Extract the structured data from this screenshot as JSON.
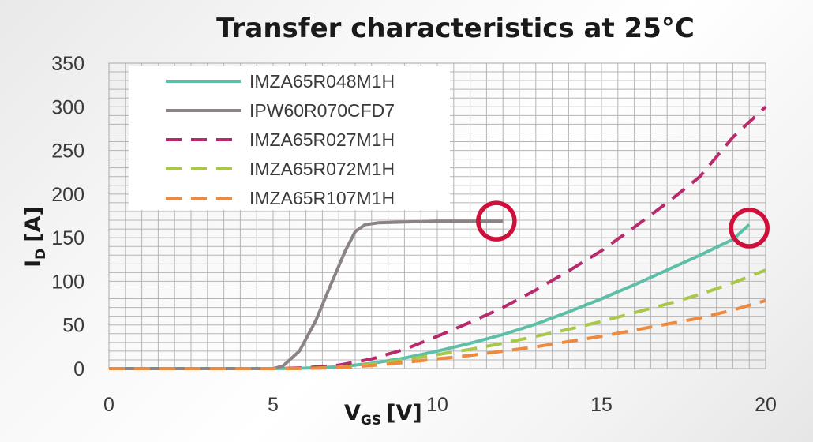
{
  "colors": {
    "grid": "#b5b5b5",
    "annotation": "#d0103a"
  },
  "chart_data": {
    "type": "line",
    "title": "Transfer characteristics at 25°C",
    "xlabel": {
      "main": "V",
      "sub": "GS",
      "unit": "[V]"
    },
    "ylabel": {
      "main": "I",
      "sub": "D",
      "unit": "[A]"
    },
    "xlim": [
      0,
      20
    ],
    "ylim": [
      0,
      350
    ],
    "xticks": [
      0,
      5,
      10,
      15,
      20
    ],
    "yticks": [
      0,
      50,
      100,
      150,
      200,
      250,
      300,
      350
    ],
    "grid": true,
    "legend_position": "top-left",
    "series": [
      {
        "name": "IMZA65R048M1H",
        "color": "#5dbfa8",
        "dash": "solid",
        "x": [
          0,
          5,
          6,
          7,
          8,
          9,
          10,
          11,
          12,
          13,
          14,
          15,
          16,
          17,
          18,
          19,
          19.5
        ],
        "y": [
          0,
          0,
          0.5,
          2,
          6,
          12,
          20,
          29,
          39,
          51,
          65,
          80,
          96,
          113,
          130,
          148,
          165
        ]
      },
      {
        "name": "IPW60R070CFD7",
        "color": "#8c8384",
        "dash": "solid",
        "x": [
          0,
          5,
          5.3,
          5.8,
          6.3,
          6.8,
          7.2,
          7.5,
          7.8,
          8.2,
          9,
          10,
          11,
          12
        ],
        "y": [
          0,
          0,
          3,
          20,
          55,
          100,
          135,
          157,
          165,
          167,
          168,
          169,
          169,
          169
        ]
      },
      {
        "name": "IMZA65R027M1H",
        "color": "#b82a6b",
        "dash": "dashed",
        "x": [
          0,
          5,
          6,
          7,
          8,
          9,
          10,
          11,
          12,
          13,
          14,
          15,
          16,
          17,
          18,
          19,
          20
        ],
        "y": [
          0,
          0,
          1,
          4,
          11,
          22,
          37,
          53,
          70,
          90,
          112,
          135,
          162,
          190,
          220,
          265,
          300
        ]
      },
      {
        "name": "IMZA65R072M1H",
        "color": "#a9c748",
        "dash": "dashed",
        "x": [
          0,
          5,
          6,
          7,
          8,
          9,
          10,
          11,
          12,
          13,
          14,
          15,
          16,
          17,
          18,
          19,
          20
        ],
        "y": [
          0,
          0,
          0.3,
          1.5,
          5,
          10,
          16,
          22,
          29,
          37,
          45,
          54,
          64,
          74,
          85,
          98,
          113
        ]
      },
      {
        "name": "IMZA65R107M1H",
        "color": "#ee8a3e",
        "dash": "dashed",
        "x": [
          0,
          5,
          6,
          7,
          8,
          9,
          10,
          11,
          12,
          13,
          14,
          15,
          16,
          17,
          18,
          19,
          20
        ],
        "y": [
          0,
          0,
          0.2,
          1,
          3.5,
          7,
          11,
          15,
          20,
          25,
          31,
          37,
          44,
          51,
          58,
          67,
          78
        ]
      }
    ],
    "annotations": [
      {
        "shape": "circle",
        "x": 11.8,
        "y": 169
      },
      {
        "shape": "circle",
        "x": 19.5,
        "y": 161
      }
    ]
  }
}
